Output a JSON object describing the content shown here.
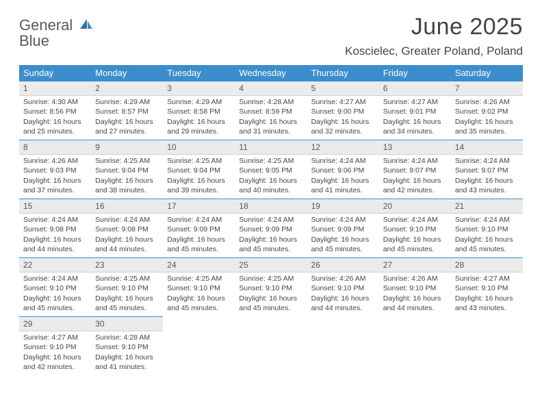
{
  "brand": {
    "name_a": "General",
    "name_b": "Blue"
  },
  "title": "June 2025",
  "location": "Koscielec, Greater Poland, Poland",
  "colors": {
    "header_bg": "#3c8dcb",
    "header_text": "#ffffff",
    "daybar_bg": "#ebebeb",
    "daybar_rule": "#3c8dcb",
    "text": "#444444",
    "background": "#ffffff"
  },
  "weekdays": [
    "Sunday",
    "Monday",
    "Tuesday",
    "Wednesday",
    "Thursday",
    "Friday",
    "Saturday"
  ],
  "weeks": [
    [
      {
        "n": "1",
        "sr": "Sunrise: 4:30 AM",
        "ss": "Sunset: 8:56 PM",
        "d1": "Daylight: 16 hours",
        "d2": "and 25 minutes."
      },
      {
        "n": "2",
        "sr": "Sunrise: 4:29 AM",
        "ss": "Sunset: 8:57 PM",
        "d1": "Daylight: 16 hours",
        "d2": "and 27 minutes."
      },
      {
        "n": "3",
        "sr": "Sunrise: 4:29 AM",
        "ss": "Sunset: 8:58 PM",
        "d1": "Daylight: 16 hours",
        "d2": "and 29 minutes."
      },
      {
        "n": "4",
        "sr": "Sunrise: 4:28 AM",
        "ss": "Sunset: 8:59 PM",
        "d1": "Daylight: 16 hours",
        "d2": "and 31 minutes."
      },
      {
        "n": "5",
        "sr": "Sunrise: 4:27 AM",
        "ss": "Sunset: 9:00 PM",
        "d1": "Daylight: 16 hours",
        "d2": "and 32 minutes."
      },
      {
        "n": "6",
        "sr": "Sunrise: 4:27 AM",
        "ss": "Sunset: 9:01 PM",
        "d1": "Daylight: 16 hours",
        "d2": "and 34 minutes."
      },
      {
        "n": "7",
        "sr": "Sunrise: 4:26 AM",
        "ss": "Sunset: 9:02 PM",
        "d1": "Daylight: 16 hours",
        "d2": "and 35 minutes."
      }
    ],
    [
      {
        "n": "8",
        "sr": "Sunrise: 4:26 AM",
        "ss": "Sunset: 9:03 PM",
        "d1": "Daylight: 16 hours",
        "d2": "and 37 minutes."
      },
      {
        "n": "9",
        "sr": "Sunrise: 4:25 AM",
        "ss": "Sunset: 9:04 PM",
        "d1": "Daylight: 16 hours",
        "d2": "and 38 minutes."
      },
      {
        "n": "10",
        "sr": "Sunrise: 4:25 AM",
        "ss": "Sunset: 9:04 PM",
        "d1": "Daylight: 16 hours",
        "d2": "and 39 minutes."
      },
      {
        "n": "11",
        "sr": "Sunrise: 4:25 AM",
        "ss": "Sunset: 9:05 PM",
        "d1": "Daylight: 16 hours",
        "d2": "and 40 minutes."
      },
      {
        "n": "12",
        "sr": "Sunrise: 4:24 AM",
        "ss": "Sunset: 9:06 PM",
        "d1": "Daylight: 16 hours",
        "d2": "and 41 minutes."
      },
      {
        "n": "13",
        "sr": "Sunrise: 4:24 AM",
        "ss": "Sunset: 9:07 PM",
        "d1": "Daylight: 16 hours",
        "d2": "and 42 minutes."
      },
      {
        "n": "14",
        "sr": "Sunrise: 4:24 AM",
        "ss": "Sunset: 9:07 PM",
        "d1": "Daylight: 16 hours",
        "d2": "and 43 minutes."
      }
    ],
    [
      {
        "n": "15",
        "sr": "Sunrise: 4:24 AM",
        "ss": "Sunset: 9:08 PM",
        "d1": "Daylight: 16 hours",
        "d2": "and 44 minutes."
      },
      {
        "n": "16",
        "sr": "Sunrise: 4:24 AM",
        "ss": "Sunset: 9:08 PM",
        "d1": "Daylight: 16 hours",
        "d2": "and 44 minutes."
      },
      {
        "n": "17",
        "sr": "Sunrise: 4:24 AM",
        "ss": "Sunset: 9:09 PM",
        "d1": "Daylight: 16 hours",
        "d2": "and 45 minutes."
      },
      {
        "n": "18",
        "sr": "Sunrise: 4:24 AM",
        "ss": "Sunset: 9:09 PM",
        "d1": "Daylight: 16 hours",
        "d2": "and 45 minutes."
      },
      {
        "n": "19",
        "sr": "Sunrise: 4:24 AM",
        "ss": "Sunset: 9:09 PM",
        "d1": "Daylight: 16 hours",
        "d2": "and 45 minutes."
      },
      {
        "n": "20",
        "sr": "Sunrise: 4:24 AM",
        "ss": "Sunset: 9:10 PM",
        "d1": "Daylight: 16 hours",
        "d2": "and 45 minutes."
      },
      {
        "n": "21",
        "sr": "Sunrise: 4:24 AM",
        "ss": "Sunset: 9:10 PM",
        "d1": "Daylight: 16 hours",
        "d2": "and 45 minutes."
      }
    ],
    [
      {
        "n": "22",
        "sr": "Sunrise: 4:24 AM",
        "ss": "Sunset: 9:10 PM",
        "d1": "Daylight: 16 hours",
        "d2": "and 45 minutes."
      },
      {
        "n": "23",
        "sr": "Sunrise: 4:25 AM",
        "ss": "Sunset: 9:10 PM",
        "d1": "Daylight: 16 hours",
        "d2": "and 45 minutes."
      },
      {
        "n": "24",
        "sr": "Sunrise: 4:25 AM",
        "ss": "Sunset: 9:10 PM",
        "d1": "Daylight: 16 hours",
        "d2": "and 45 minutes."
      },
      {
        "n": "25",
        "sr": "Sunrise: 4:25 AM",
        "ss": "Sunset: 9:10 PM",
        "d1": "Daylight: 16 hours",
        "d2": "and 45 minutes."
      },
      {
        "n": "26",
        "sr": "Sunrise: 4:26 AM",
        "ss": "Sunset: 9:10 PM",
        "d1": "Daylight: 16 hours",
        "d2": "and 44 minutes."
      },
      {
        "n": "27",
        "sr": "Sunrise: 4:26 AM",
        "ss": "Sunset: 9:10 PM",
        "d1": "Daylight: 16 hours",
        "d2": "and 44 minutes."
      },
      {
        "n": "28",
        "sr": "Sunrise: 4:27 AM",
        "ss": "Sunset: 9:10 PM",
        "d1": "Daylight: 16 hours",
        "d2": "and 43 minutes."
      }
    ],
    [
      {
        "n": "29",
        "sr": "Sunrise: 4:27 AM",
        "ss": "Sunset: 9:10 PM",
        "d1": "Daylight: 16 hours",
        "d2": "and 42 minutes."
      },
      {
        "n": "30",
        "sr": "Sunrise: 4:28 AM",
        "ss": "Sunset: 9:10 PM",
        "d1": "Daylight: 16 hours",
        "d2": "and 41 minutes."
      },
      null,
      null,
      null,
      null,
      null
    ]
  ]
}
